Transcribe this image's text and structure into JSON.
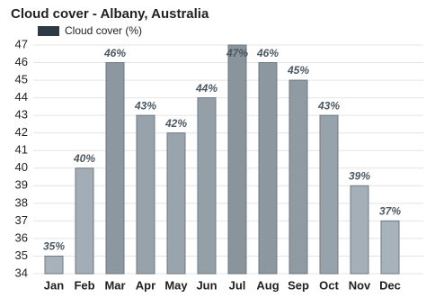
{
  "chart_data": {
    "type": "bar",
    "title": "Cloud cover - Albany, Australia",
    "legend": "Cloud cover (%)",
    "legend_color": "#2e3a44",
    "categories": [
      "Jan",
      "Feb",
      "Mar",
      "Apr",
      "May",
      "Jun",
      "Jul",
      "Aug",
      "Sep",
      "Oct",
      "Nov",
      "Dec"
    ],
    "values": [
      35,
      40,
      46,
      43,
      42,
      44,
      47,
      46,
      45,
      43,
      39,
      37
    ],
    "value_labels": [
      "35%",
      "40%",
      "46%",
      "43%",
      "42%",
      "44%",
      "47%",
      "46%",
      "45%",
      "43%",
      "39%",
      "37%"
    ],
    "colors": [
      "#a7b2bb",
      "#a2adb6",
      "#8c979f",
      "#97a2aa",
      "#99a4ad",
      "#949fa8",
      "#89949c",
      "#8c979f",
      "#8f9aa3",
      "#97a2aa",
      "#a4afb8",
      "#a7b2bb"
    ],
    "ylim": [
      34,
      47
    ],
    "yticks": [
      34,
      35,
      36,
      37,
      38,
      39,
      40,
      41,
      42,
      43,
      44,
      45,
      46,
      47
    ],
    "grid": true
  }
}
